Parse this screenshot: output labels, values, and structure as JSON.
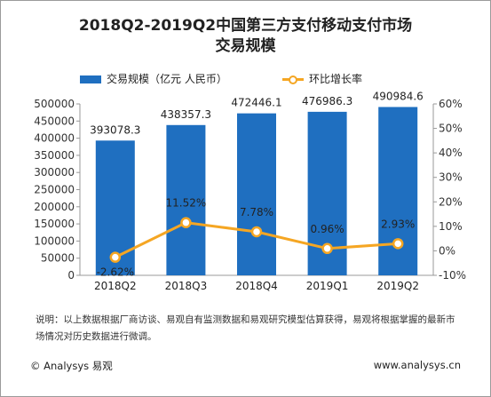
{
  "title_line1": "2018Q2-2019Q2中国第三方支付移动支付市场",
  "title_line2": "交易规模",
  "footer": {
    "note": "说明：以上数据根据厂商访谈、易观自有监测数据和易观研究模型估算获得，易观将根据掌握的最新市场情况对历史数据进行微调。",
    "copyright": "© Analysys 易观",
    "website": "www.analysys.cn"
  },
  "chart_data": {
    "type": "bar",
    "categories": [
      "2018Q2",
      "2018Q3",
      "2018Q4",
      "2019Q1",
      "2019Q2"
    ],
    "series": [
      {
        "name": "交易规模（亿元 人民币）",
        "type": "bar",
        "axis": "left",
        "color": "#1f6fc0",
        "values": [
          393078.3,
          438357.3,
          472446.1,
          476986.3,
          490984.6
        ],
        "labels": [
          "393078.3",
          "438357.3",
          "472446.1",
          "476986.3",
          "490984.6"
        ]
      },
      {
        "name": "环比增长率",
        "type": "line",
        "axis": "right",
        "color": "#f5a623",
        "values": [
          -2.62,
          11.52,
          7.78,
          0.96,
          2.93
        ],
        "labels": [
          "-2.62%",
          "11.52%",
          "7.78%",
          "0.96%",
          "2.93%"
        ]
      }
    ],
    "y_left": {
      "lim": [
        0,
        500000
      ],
      "ticks": [
        "0",
        "50000",
        "100000",
        "150000",
        "200000",
        "250000",
        "300000",
        "350000",
        "400000",
        "450000",
        "500000"
      ]
    },
    "y_right": {
      "lim": [
        -10,
        60
      ],
      "ticks": [
        "-10%",
        "0%",
        "10%",
        "20%",
        "30%",
        "40%",
        "50%",
        "60%"
      ]
    },
    "legend": "top",
    "grid": false
  }
}
